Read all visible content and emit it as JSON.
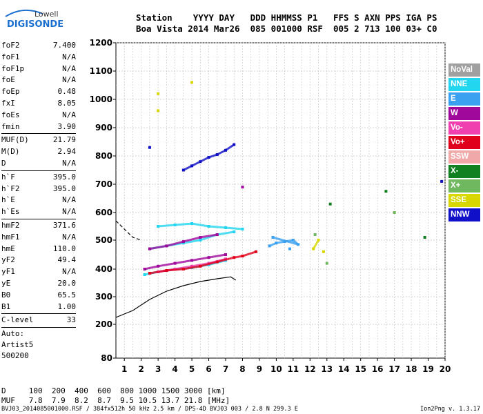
{
  "logo": {
    "line1": "Lowell",
    "line2": "DIGISONDE",
    "accent": "#1a6fd1"
  },
  "header": {
    "row1": "Station    YYYY DAY   DDD HHMMSS P1   FFS S AXN PPS IGA PS",
    "row2": "Boa Vista 2014 Mar26  085 001000 RSF  005 2 713 100 03+ C0"
  },
  "params_group1": [
    {
      "k": "foF2",
      "v": "7.400"
    },
    {
      "k": "foF1",
      "v": "N/A"
    },
    {
      "k": "foF1p",
      "v": "N/A"
    },
    {
      "k": "foE",
      "v": "N/A"
    },
    {
      "k": "foEp",
      "v": "0.48"
    },
    {
      "k": "fxI",
      "v": "8.05"
    },
    {
      "k": "foEs",
      "v": "N/A"
    },
    {
      "k": "fmin",
      "v": "3.90"
    }
  ],
  "params_group2": [
    {
      "k": "MUF(D)",
      "v": "21.79"
    },
    {
      "k": "M(D)",
      "v": "2.94"
    },
    {
      "k": "D",
      "v": "N/A"
    }
  ],
  "params_group3": [
    {
      "k": "h`F",
      "v": "395.0"
    },
    {
      "k": "h`F2",
      "v": "395.0"
    },
    {
      "k": "h`E",
      "v": "N/A"
    },
    {
      "k": "h`Es",
      "v": "N/A"
    }
  ],
  "params_group4": [
    {
      "k": "hmF2",
      "v": "371.6"
    },
    {
      "k": "hmF1",
      "v": "N/A"
    },
    {
      "k": "hmE",
      "v": "110.0"
    },
    {
      "k": "yF2",
      "v": "49.4"
    },
    {
      "k": "yF1",
      "v": "N/A"
    },
    {
      "k": "yE",
      "v": "20.0"
    },
    {
      "k": "B0",
      "v": "65.5"
    },
    {
      "k": "B1",
      "v": "1.00"
    }
  ],
  "params_group5": [
    {
      "k": "C-level",
      "v": "33"
    }
  ],
  "autoscaling": {
    "line1": "Auto:",
    "line2": "Artist5",
    "line3": "500200"
  },
  "legend": [
    {
      "label": "NoVal",
      "color": "#a0a0a0"
    },
    {
      "label": "NNE",
      "color": "#22d6f0"
    },
    {
      "label": "E",
      "color": "#3aa0f0"
    },
    {
      "label": "W",
      "color": "#a0089c"
    },
    {
      "label": "Vo-",
      "color": "#f040b0"
    },
    {
      "label": "Vo+",
      "color": "#e0001c"
    },
    {
      "label": "SSW",
      "color": "#f0a8a8"
    },
    {
      "label": "X-",
      "color": "#108020"
    },
    {
      "label": "X+",
      "color": "#70b860"
    },
    {
      "label": "SSE",
      "color": "#d8d800"
    },
    {
      "label": "NNW",
      "color": "#1010c8"
    }
  ],
  "dtable": {
    "row1": "D     100  200  400  600  800 1000 1500 3000 [km]",
    "row2": "MUF   7.8  7.9  8.2  8.7  9.5 10.5 13.7 21.8 [MHz]"
  },
  "footer": "BVJ03_2014085001000.RSF / 384fx512h 50 kHz 2.5 km / DPS-4D BVJ03 003 / 2.8 N 299.3 E",
  "version": "Ion2Png v. 1.3.17",
  "chart_data": {
    "type": "scatter",
    "title": "",
    "xlabel": "",
    "ylabel": "",
    "xlim": [
      0.5,
      20
    ],
    "ylim": [
      80,
      1200
    ],
    "x_ticks": [
      1,
      2,
      3,
      4,
      5,
      6,
      7,
      8,
      9,
      10,
      11,
      12,
      13,
      14,
      15,
      16,
      17,
      18,
      19,
      20
    ],
    "y_ticks": [
      80,
      200,
      300,
      400,
      500,
      600,
      700,
      800,
      900,
      1000,
      1100,
      1200
    ],
    "grid": true,
    "legend_position": "right",
    "series": [
      {
        "name": "NNE",
        "color": "#22d6f0",
        "points": [
          [
            2.2,
            380
          ],
          [
            3,
            390
          ],
          [
            4,
            400
          ],
          [
            5,
            405
          ],
          [
            6,
            415
          ],
          [
            7,
            430
          ],
          [
            2.5,
            470
          ],
          [
            3.5,
            480
          ],
          [
            4.5,
            490
          ],
          [
            5.5,
            500
          ],
          [
            6.5,
            520
          ],
          [
            7.5,
            530
          ],
          [
            3,
            550
          ],
          [
            4,
            555
          ],
          [
            5,
            560
          ],
          [
            6,
            550
          ],
          [
            7,
            545
          ],
          [
            8,
            540
          ]
        ]
      },
      {
        "name": "E",
        "color": "#3aa0f0",
        "points": [
          [
            9.6,
            480
          ],
          [
            10,
            490
          ],
          [
            10.5,
            495
          ],
          [
            11,
            500
          ],
          [
            11.3,
            485
          ],
          [
            9.8,
            510
          ],
          [
            10.8,
            470
          ]
        ]
      },
      {
        "name": "W",
        "color": "#a0089c",
        "points": [
          [
            2.2,
            400
          ],
          [
            3,
            410
          ],
          [
            4,
            420
          ],
          [
            5,
            430
          ],
          [
            6,
            440
          ],
          [
            7,
            450
          ],
          [
            2.5,
            470
          ],
          [
            3.5,
            480
          ],
          [
            4.5,
            495
          ],
          [
            5.5,
            510
          ],
          [
            6.5,
            520
          ],
          [
            8,
            690
          ]
        ]
      },
      {
        "name": "Vo-",
        "color": "#f040b0",
        "points": [
          [
            3,
            390
          ],
          [
            4,
            400
          ],
          [
            5,
            410
          ],
          [
            6,
            420
          ],
          [
            7,
            435
          ]
        ]
      },
      {
        "name": "Vo+",
        "color": "#e0001c",
        "points": [
          [
            2.5,
            385
          ],
          [
            3.5,
            395
          ],
          [
            4.5,
            400
          ],
          [
            5.5,
            410
          ],
          [
            6.5,
            425
          ],
          [
            7.5,
            440
          ],
          [
            8,
            445
          ],
          [
            8.8,
            460
          ]
        ]
      },
      {
        "name": "SSE",
        "color": "#d8d800",
        "points": [
          [
            12.2,
            470
          ],
          [
            12.5,
            500
          ],
          [
            12.8,
            460
          ],
          [
            3,
            1020
          ],
          [
            3,
            960
          ],
          [
            5,
            1060
          ]
        ]
      },
      {
        "name": "X+",
        "color": "#70b860",
        "points": [
          [
            12.3,
            520
          ],
          [
            13,
            420
          ],
          [
            17,
            600
          ]
        ]
      },
      {
        "name": "X-",
        "color": "#108020",
        "points": [
          [
            13.2,
            630
          ],
          [
            16.5,
            675
          ],
          [
            18.8,
            510
          ]
        ]
      },
      {
        "name": "NNW",
        "color": "#1010c8",
        "points": [
          [
            4.5,
            750
          ],
          [
            5,
            765
          ],
          [
            5.5,
            780
          ],
          [
            6,
            795
          ],
          [
            6.5,
            805
          ],
          [
            7,
            820
          ],
          [
            7.5,
            840
          ],
          [
            2.5,
            830
          ],
          [
            19.8,
            710
          ]
        ]
      }
    ],
    "lines": [
      {
        "style": "solid",
        "points": [
          [
            0.5,
            225
          ],
          [
            1.5,
            250
          ],
          [
            2.5,
            290
          ],
          [
            3.5,
            320
          ],
          [
            4.5,
            340
          ],
          [
            5.5,
            355
          ],
          [
            6.5,
            365
          ],
          [
            7.3,
            372
          ],
          [
            7.6,
            360
          ]
        ]
      },
      {
        "style": "dashed",
        "points": [
          [
            0.5,
            570
          ],
          [
            1,
            540
          ],
          [
            1.5,
            510
          ],
          [
            2,
            500
          ]
        ]
      }
    ]
  }
}
